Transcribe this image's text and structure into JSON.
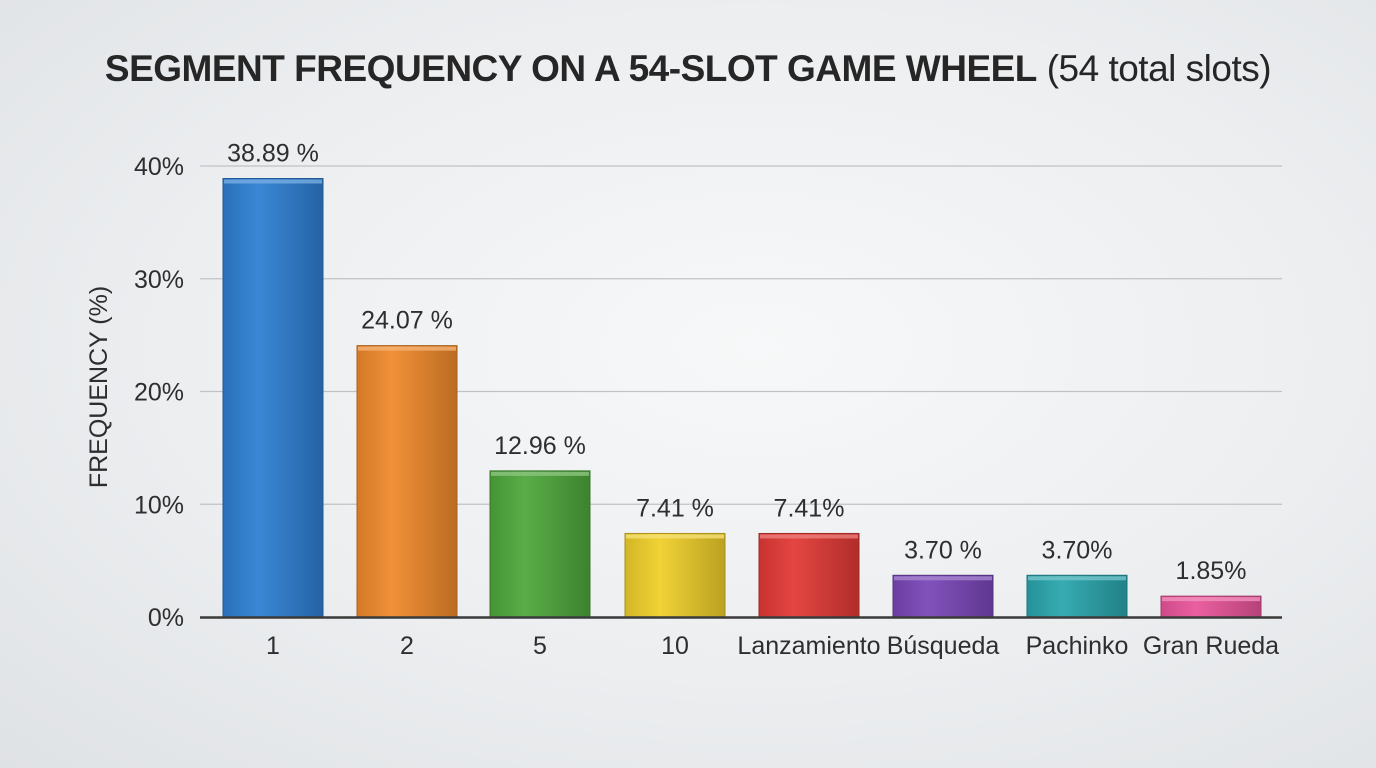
{
  "chart_data": {
    "type": "bar",
    "title": "SEGMENT FREQUENCY ON A 54-SLOT GAME WHEEL",
    "subtitle": "(54 total slots)",
    "ylabel": "FREQUENCY (%)",
    "xlabel": "",
    "ylim": [
      0,
      40
    ],
    "yticks": [
      0,
      10,
      20,
      30,
      40
    ],
    "ytick_labels": [
      "0%",
      "10%",
      "20%",
      "30%",
      "40%"
    ],
    "grid": true,
    "categories": [
      "1",
      "2",
      "5",
      "10",
      "Lanzamiento",
      "Búsqueda",
      "Pachinko",
      "Gran Rueda"
    ],
    "values": [
      38.89,
      24.07,
      12.96,
      7.41,
      7.41,
      3.7,
      3.7,
      1.85
    ],
    "data_labels": [
      "38.89 %",
      "24.07 %",
      "12.96 %",
      "7.41 %",
      "7.41%",
      "3.70 %",
      "3.70%",
      "1.85%"
    ],
    "colors": [
      "#2f7fd2",
      "#f08a2c",
      "#4ea83c",
      "#efcf2a",
      "#e23a36",
      "#7a47b8",
      "#2aa6ad",
      "#e9559a"
    ]
  }
}
